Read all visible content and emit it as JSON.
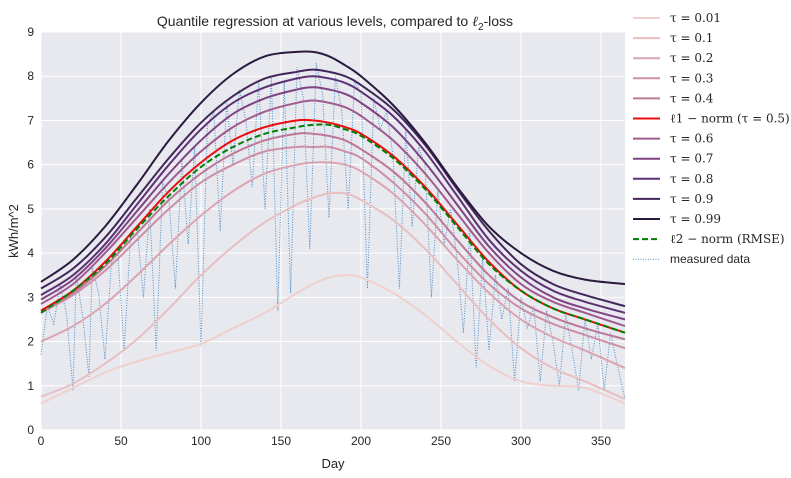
{
  "chart_data": {
    "type": "line",
    "title": "Quantile regression at various levels, compared to ℓ2-loss",
    "xlabel": "Day",
    "ylabel": "kWh/m^2",
    "xlim": [
      0,
      365
    ],
    "ylim": [
      0,
      9
    ],
    "xticks": [
      "0",
      "50",
      "100",
      "150",
      "200",
      "250",
      "300",
      "350"
    ],
    "yticks": [
      "0",
      "1",
      "2",
      "3",
      "4",
      "5",
      "6",
      "7",
      "8",
      "9"
    ],
    "grid": true,
    "legend_position": "outside right",
    "x": [
      0,
      20,
      40,
      60,
      80,
      100,
      120,
      140,
      160,
      170,
      180,
      190,
      200,
      220,
      240,
      260,
      280,
      300,
      320,
      340,
      365
    ],
    "series": [
      {
        "name": "τ = 0.01",
        "color": "#efd0cc",
        "style": "solid",
        "values": [
          0.6,
          0.95,
          1.3,
          1.55,
          1.75,
          1.95,
          2.3,
          2.65,
          3.1,
          3.3,
          3.45,
          3.5,
          3.45,
          3.1,
          2.6,
          2.0,
          1.45,
          1.1,
          1.0,
          0.95,
          0.6
        ]
      },
      {
        "name": "τ = 0.1",
        "color": "#e8bfc0",
        "style": "solid",
        "values": [
          0.75,
          1.05,
          1.5,
          2.05,
          2.75,
          3.5,
          4.15,
          4.7,
          5.1,
          5.25,
          5.35,
          5.35,
          5.2,
          4.75,
          4.1,
          3.3,
          2.5,
          1.85,
          1.4,
          1.1,
          0.7
        ]
      },
      {
        "name": "τ = 0.2",
        "color": "#daa5b0",
        "style": "solid",
        "values": [
          2.0,
          2.35,
          2.85,
          3.5,
          4.2,
          4.85,
          5.4,
          5.8,
          6.0,
          6.05,
          6.05,
          6.0,
          5.85,
          5.35,
          4.65,
          3.85,
          3.1,
          2.5,
          2.1,
          1.8,
          1.4
        ]
      },
      {
        "name": "τ = 0.3",
        "color": "#cc90a5",
        "style": "solid",
        "values": [
          2.65,
          3.05,
          3.6,
          4.3,
          5.0,
          5.6,
          6.0,
          6.3,
          6.4,
          6.4,
          6.4,
          6.3,
          6.15,
          5.6,
          4.9,
          4.05,
          3.3,
          2.75,
          2.4,
          2.15,
          1.85
        ]
      },
      {
        "name": "τ = 0.4",
        "color": "#bc7895",
        "style": "solid",
        "values": [
          2.7,
          3.1,
          3.7,
          4.45,
          5.2,
          5.8,
          6.25,
          6.55,
          6.7,
          6.7,
          6.65,
          6.55,
          6.35,
          5.85,
          5.15,
          4.3,
          3.5,
          2.9,
          2.55,
          2.3,
          2.05
        ]
      },
      {
        "name": "ℓ1 − norm (τ = 0.5)",
        "color": "#ea0e0e",
        "style": "solid",
        "values": [
          2.7,
          3.15,
          3.8,
          4.6,
          5.4,
          6.05,
          6.55,
          6.85,
          7.0,
          7.0,
          6.95,
          6.85,
          6.7,
          6.2,
          5.5,
          4.65,
          3.8,
          3.15,
          2.75,
          2.5,
          2.2
        ]
      },
      {
        "name": "τ = 0.6",
        "color": "#9f5b8e",
        "style": "solid",
        "values": [
          2.85,
          3.3,
          4.0,
          4.8,
          5.6,
          6.3,
          6.85,
          7.2,
          7.4,
          7.45,
          7.4,
          7.3,
          7.1,
          6.55,
          5.8,
          4.9,
          4.0,
          3.3,
          2.9,
          2.65,
          2.35
        ]
      },
      {
        "name": "τ = 0.7",
        "color": "#7f4383",
        "style": "solid",
        "values": [
          2.95,
          3.4,
          4.1,
          4.95,
          5.8,
          6.55,
          7.15,
          7.5,
          7.7,
          7.75,
          7.7,
          7.6,
          7.4,
          6.85,
          6.05,
          5.1,
          4.15,
          3.45,
          3.0,
          2.75,
          2.5
        ]
      },
      {
        "name": "τ = 0.8",
        "color": "#5e3075",
        "style": "solid",
        "values": [
          3.05,
          3.5,
          4.2,
          5.1,
          6.0,
          6.8,
          7.4,
          7.75,
          7.95,
          8.0,
          7.95,
          7.85,
          7.65,
          7.1,
          6.3,
          5.3,
          4.3,
          3.6,
          3.15,
          2.9,
          2.65
        ]
      },
      {
        "name": "τ = 0.9",
        "color": "#432659",
        "style": "solid",
        "values": [
          3.2,
          3.65,
          4.35,
          5.25,
          6.15,
          6.95,
          7.55,
          7.95,
          8.1,
          8.15,
          8.1,
          8.0,
          7.8,
          7.25,
          6.45,
          5.45,
          4.5,
          3.75,
          3.3,
          3.05,
          2.8
        ]
      },
      {
        "name": "τ = 0.99",
        "color": "#2a1a3e",
        "style": "solid",
        "values": [
          3.35,
          3.85,
          4.6,
          5.55,
          6.55,
          7.4,
          8.05,
          8.45,
          8.55,
          8.55,
          8.45,
          8.25,
          8.0,
          7.35,
          6.5,
          5.5,
          4.6,
          4.0,
          3.6,
          3.4,
          3.3
        ]
      },
      {
        "name": "ℓ2 − norm (RMSE)",
        "color": "#008000",
        "style": "dashed",
        "values": [
          2.65,
          3.15,
          3.75,
          4.55,
          5.3,
          5.95,
          6.4,
          6.7,
          6.85,
          6.9,
          6.9,
          6.8,
          6.65,
          6.15,
          5.45,
          4.6,
          3.75,
          3.15,
          2.75,
          2.5,
          2.2
        ]
      }
    ],
    "measured_data": {
      "name": "measured data",
      "color": "#4a8fc8",
      "style": "dotted",
      "x": [
        0,
        4,
        8,
        12,
        16,
        20,
        22,
        26,
        30,
        32,
        36,
        40,
        44,
        48,
        52,
        56,
        60,
        64,
        68,
        72,
        76,
        80,
        84,
        88,
        92,
        96,
        100,
        104,
        108,
        112,
        116,
        120,
        124,
        128,
        132,
        136,
        140,
        144,
        148,
        152,
        156,
        160,
        164,
        168,
        172,
        176,
        180,
        184,
        188,
        192,
        196,
        200,
        204,
        208,
        212,
        216,
        220,
        224,
        228,
        232,
        236,
        240,
        244,
        248,
        252,
        256,
        260,
        264,
        268,
        272,
        276,
        280,
        284,
        288,
        292,
        296,
        300,
        304,
        308,
        312,
        316,
        320,
        324,
        328,
        332,
        336,
        340,
        344,
        348,
        352,
        356,
        360,
        365
      ],
      "y": [
        1.7,
        2.8,
        2.4,
        3.3,
        2.6,
        0.9,
        3.5,
        2.6,
        1.2,
        3.7,
        3.1,
        1.6,
        3.8,
        4.0,
        1.8,
        4.4,
        4.6,
        3.0,
        5.0,
        1.8,
        5.6,
        5.2,
        3.2,
        6.1,
        4.2,
        6.4,
        1.9,
        6.9,
        7.2,
        4.5,
        7.4,
        6.0,
        7.7,
        7.0,
        5.5,
        7.9,
        5.0,
        8.0,
        2.7,
        7.9,
        3.1,
        8.2,
        7.5,
        4.1,
        8.3,
        7.6,
        4.8,
        8.0,
        7.2,
        5.0,
        7.9,
        7.6,
        3.2,
        7.5,
        6.8,
        7.2,
        6.2,
        3.2,
        6.8,
        4.6,
        6.4,
        6.0,
        3.0,
        5.4,
        4.2,
        5.0,
        3.9,
        2.2,
        4.5,
        1.4,
        3.9,
        1.8,
        3.5,
        2.5,
        3.2,
        1.1,
        3.0,
        2.3,
        2.8,
        1.1,
        2.7,
        2.0,
        1.0,
        2.6,
        1.8,
        0.9,
        2.5,
        1.6,
        2.4,
        0.9,
        2.2,
        1.5,
        0.7
      ]
    }
  }
}
